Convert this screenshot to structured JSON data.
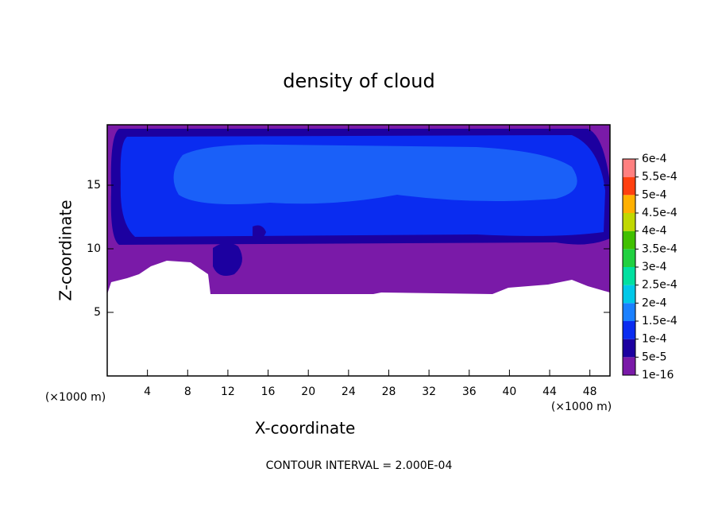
{
  "chart_data": {
    "type": "contour",
    "title": "density of cloud",
    "xlabel": "X-coordinate",
    "ylabel": "Z-coordinate",
    "x_unit": "(×1000 m)",
    "y_unit": "(×1000 m)",
    "annotation": "CONTOUR INTERVAL = 2.000E-04",
    "xlim": [
      0,
      50
    ],
    "xticks": [
      4,
      8,
      12,
      16,
      20,
      24,
      28,
      32,
      36,
      40,
      44,
      48
    ],
    "ylim": [
      0,
      19.75
    ],
    "yticks": [
      5,
      10,
      15
    ],
    "colorbar": {
      "clim": [
        1e-16,
        0.0006
      ],
      "ticks": [
        {
          "value": 1e-16,
          "label": "1e-16"
        },
        {
          "value": 5e-05,
          "label": "5e-5"
        },
        {
          "value": 0.0001,
          "label": "1e-4"
        },
        {
          "value": 0.00015,
          "label": "1.5e-4"
        },
        {
          "value": 0.0002,
          "label": "2e-4"
        },
        {
          "value": 0.00025,
          "label": "2.5e-4"
        },
        {
          "value": 0.0003,
          "label": "3e-4"
        },
        {
          "value": 0.00035,
          "label": "3.5e-4"
        },
        {
          "value": 0.0004,
          "label": "4e-4"
        },
        {
          "value": 0.00045,
          "label": "4.5e-4"
        },
        {
          "value": 0.0005,
          "label": "5e-4"
        },
        {
          "value": 0.00055,
          "label": "5.5e-4"
        },
        {
          "value": 0.0006,
          "label": "6e-4"
        }
      ],
      "colors": [
        "#7a1aa8",
        "#1c00a0",
        "#0a2cf0",
        "#1a80ff",
        "#00c8e8",
        "#00e0a0",
        "#20d040",
        "#40c000",
        "#c0d800",
        "#ffb000",
        "#ff4010",
        "#ff8080"
      ]
    }
  }
}
